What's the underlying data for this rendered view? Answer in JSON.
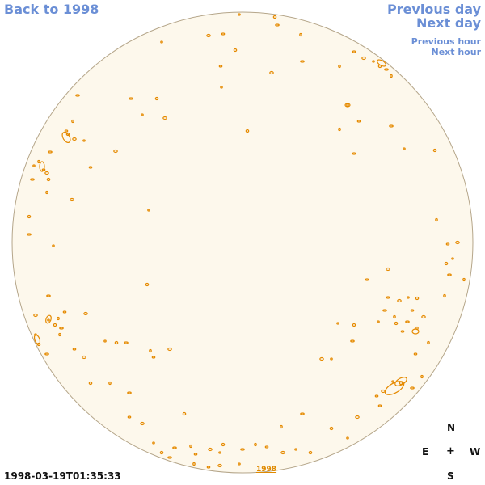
{
  "nav": {
    "back_label": "Back to 1998",
    "previous_day_label": "Previous day",
    "next_day_label": "Next day",
    "previous_hour_label": "Previous hour",
    "next_hour_label": "Next hour"
  },
  "observation": {
    "timestamp": "1998-03-19T01:35:33",
    "year_link": "1998"
  },
  "compass": {
    "north": "N",
    "east": "E",
    "center": "+",
    "west": "W",
    "south": "S"
  },
  "colors": {
    "disk_fill": "#fdf8ec",
    "disk_edge": "#b5a68a",
    "contour": "#e58a00",
    "link": "#6b8fd6"
  }
}
